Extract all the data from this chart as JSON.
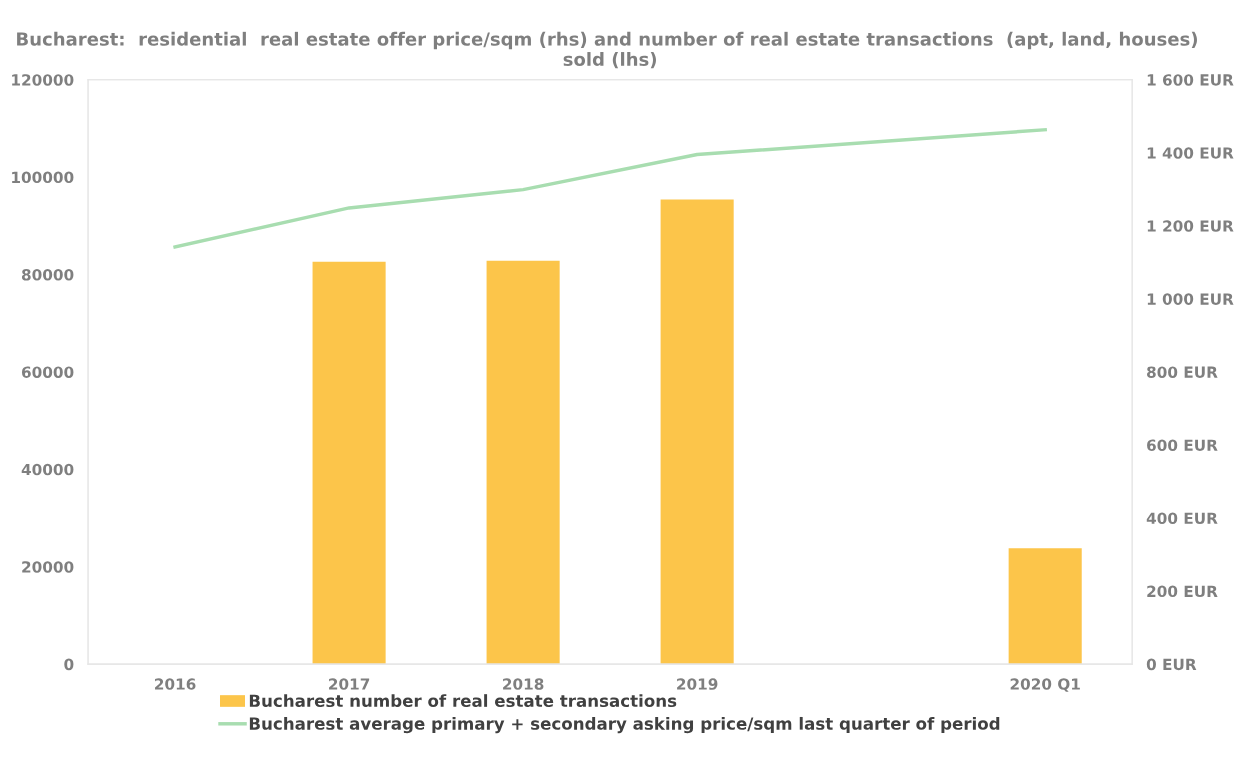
{
  "chart_data": {
    "type": "bar",
    "title": "Bucharest:  residential  real estate offer price/sqm (rhs) and number of real estate transactions  (apt, land, houses)  sold (lhs)",
    "categories": [
      "2016",
      "2017",
      "2018",
      "2019",
      null,
      "2020 Q1"
    ],
    "series": [
      {
        "name": "Bucharest number of real estate transactions",
        "color": "#fcc54a",
        "values": [
          null,
          82600,
          82800,
          95400,
          null,
          23800
        ]
      },
      {
        "name": "Bucharest average primary + secondary asking price/sqm last quarter of period",
        "type": "line",
        "axis": "y2",
        "color": "#a8ddb0",
        "values": [
          1142,
          1249,
          1299,
          1395,
          null,
          1463
        ]
      }
    ],
    "ylim": [
      0,
      120000
    ],
    "yticks": [
      0,
      20000,
      40000,
      60000,
      80000,
      100000,
      120000
    ],
    "y2lim": [
      0,
      1600
    ],
    "y2ticks": [
      {
        "value": 0,
        "label": "0 EUR"
      },
      {
        "value": 200,
        "label": "200 EUR"
      },
      {
        "value": 400,
        "label": "400 EUR"
      },
      {
        "value": 600,
        "label": "600 EUR"
      },
      {
        "value": 800,
        "label": "800 EUR"
      },
      {
        "value": 1000,
        "label": "1 000 EUR"
      },
      {
        "value": 1200,
        "label": "1 200 EUR"
      },
      {
        "value": 1400,
        "label": "1 400 EUR"
      },
      {
        "value": 1600,
        "label": "1 600 EUR"
      }
    ],
    "grid": false,
    "legend": "bottom"
  }
}
